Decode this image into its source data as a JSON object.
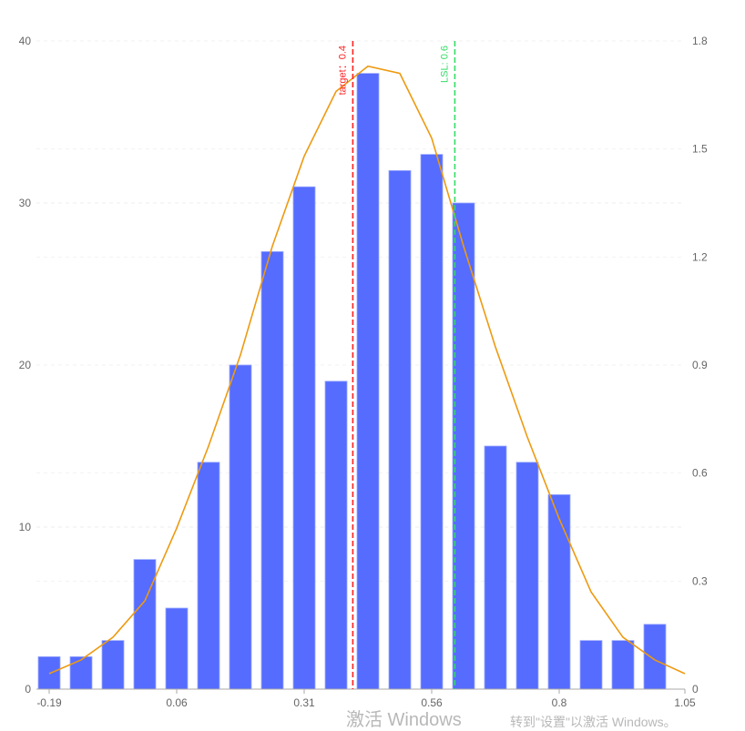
{
  "chart_data": {
    "type": "bar",
    "bins_start": -0.19,
    "bin_width": 0.0625,
    "values": [
      2,
      2,
      3,
      8,
      5,
      14,
      20,
      27,
      31,
      19,
      38,
      32,
      33,
      30,
      15,
      14,
      12,
      3,
      3,
      4
    ],
    "x_ticks": [
      "-0.19",
      "0.06",
      "0.31",
      "0.56",
      "0.8",
      "1.05"
    ],
    "x_tick_values": [
      -0.19,
      0.06,
      0.31,
      0.56,
      0.81,
      1.05
    ],
    "xlim": [
      -0.19,
      1.05
    ],
    "y_left": {
      "range": [
        0,
        40
      ],
      "ticks": [
        0,
        10,
        20,
        30,
        40
      ]
    },
    "y_right": {
      "range": [
        0,
        1.8
      ],
      "ticks": [
        "0",
        "0.3",
        "0.6",
        "0.9",
        "1.2",
        "1.5",
        "1.8"
      ]
    },
    "density_curve": {
      "x": [
        -0.19,
        -0.1275,
        -0.065,
        -0.0025,
        0.06,
        0.1225,
        0.185,
        0.2475,
        0.31,
        0.3725,
        0.435,
        0.4975,
        0.56,
        0.6225,
        0.685,
        0.7475,
        0.81,
        0.8725,
        0.935,
        0.9975,
        1.05
      ],
      "y": [
        0.043,
        0.081,
        0.144,
        0.245,
        0.447,
        0.675,
        0.928,
        1.23,
        1.48,
        1.66,
        1.73,
        1.71,
        1.53,
        1.23,
        0.95,
        0.7,
        0.473,
        0.27,
        0.144,
        0.081,
        0.043
      ]
    },
    "mark_lines": [
      {
        "label": "target：0.4",
        "value": 0.4,
        "color": "#ff2020"
      },
      {
        "label": "LSL: 0.6",
        "value": 0.6,
        "color": "#33dd66"
      }
    ],
    "grid": true,
    "colors": {
      "bar": "#556cff",
      "curve": "#ee9a10",
      "axis": "#aaaaaa",
      "text": "#666666"
    }
  },
  "watermark": {
    "line1": "激活 Windows",
    "line2": "转到\"设置\"以激活 Windows。"
  }
}
